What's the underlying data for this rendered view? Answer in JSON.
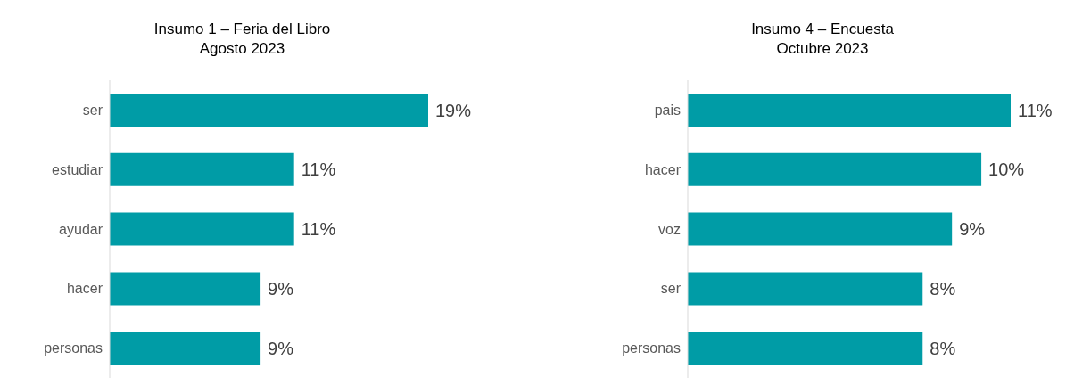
{
  "chart_data": [
    {
      "type": "bar",
      "orientation": "horizontal",
      "title": "Insumo 1 – Feria del Libro\nAgosto 2023",
      "categories": [
        "ser",
        "estudiar",
        "ayudar",
        "hacer",
        "personas"
      ],
      "values": [
        19,
        11,
        11,
        9,
        9
      ],
      "value_labels": [
        "19%",
        "11%",
        "11%",
        "9%",
        "9%"
      ],
      "color": "#009ca6",
      "tick_labels": "y"
    },
    {
      "type": "bar",
      "orientation": "horizontal",
      "title": "Insumo 4 – Encuesta\nOctubre 2023",
      "categories": [
        "pais",
        "hacer",
        "voz",
        "ser",
        "personas"
      ],
      "values": [
        11,
        10,
        9,
        8,
        8
      ],
      "value_labels": [
        "11%",
        "10%",
        "9%",
        "8%",
        "8%"
      ],
      "color": "#009ca6",
      "tick_labels": "y"
    }
  ]
}
